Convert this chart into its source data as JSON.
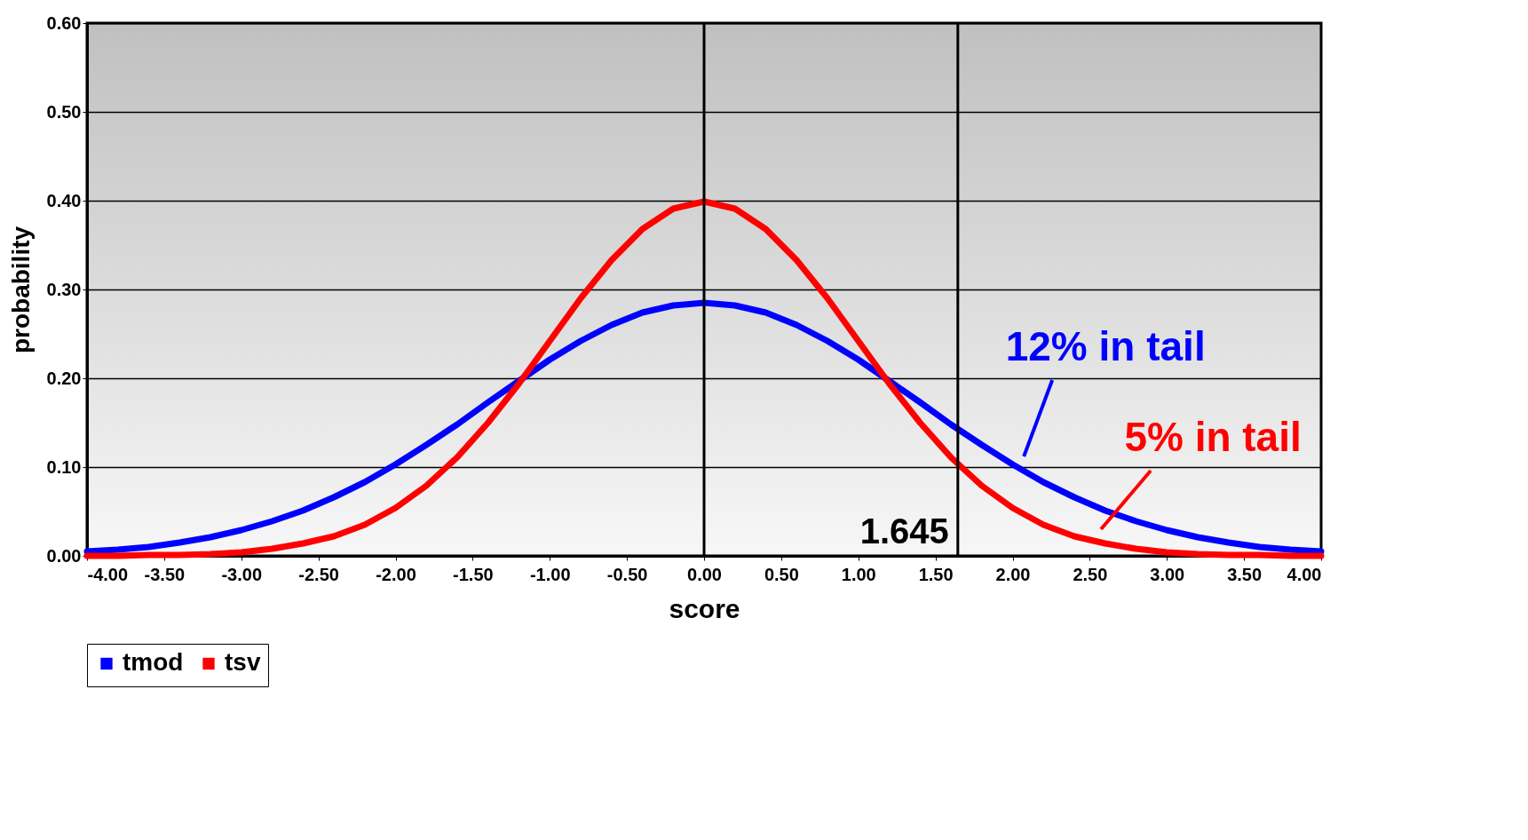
{
  "chart_data": {
    "type": "line",
    "xlabel": "score",
    "ylabel": "probability",
    "x": [
      -4,
      -3.8,
      -3.6,
      -3.4,
      -3.2,
      -3,
      -2.8,
      -2.6,
      -2.4,
      -2.2,
      -2,
      -1.8,
      -1.6,
      -1.4,
      -1.2,
      -1,
      -0.8,
      -0.6,
      -0.4,
      -0.2,
      0,
      0.2,
      0.4,
      0.6,
      0.8,
      1,
      1.2,
      1.4,
      1.6,
      1.8,
      2,
      2.2,
      2.4,
      2.6,
      2.8,
      3,
      3.2,
      3.4,
      3.6,
      3.8,
      4
    ],
    "series": [
      {
        "name": "tmod",
        "color": "#0000ff",
        "values": [
          0.005,
          0.007,
          0.01,
          0.015,
          0.021,
          0.029,
          0.039,
          0.051,
          0.066,
          0.083,
          0.103,
          0.125,
          0.148,
          0.173,
          0.197,
          0.221,
          0.242,
          0.26,
          0.274,
          0.282,
          0.285,
          0.282,
          0.274,
          0.26,
          0.242,
          0.221,
          0.197,
          0.173,
          0.148,
          0.125,
          0.103,
          0.083,
          0.066,
          0.051,
          0.039,
          0.029,
          0.021,
          0.015,
          0.01,
          0.007,
          0.005
        ]
      },
      {
        "name": "tsv",
        "color": "#ff0000",
        "values": [
          0,
          0,
          0.001,
          0.001,
          0.002,
          0.004,
          0.008,
          0.014,
          0.022,
          0.035,
          0.054,
          0.079,
          0.111,
          0.15,
          0.194,
          0.242,
          0.29,
          0.333,
          0.368,
          0.391,
          0.399,
          0.391,
          0.368,
          0.333,
          0.29,
          0.242,
          0.194,
          0.15,
          0.111,
          0.079,
          0.054,
          0.035,
          0.022,
          0.014,
          0.008,
          0.004,
          0.002,
          0.001,
          0.001,
          0,
          0
        ]
      }
    ],
    "xlim": [
      -4,
      4
    ],
    "xticks": [
      {
        "value": -4,
        "label": "-4.00"
      },
      {
        "value": -3.5,
        "label": "-3.50"
      },
      {
        "value": -3,
        "label": "-3.00"
      },
      {
        "value": -2.5,
        "label": "-2.50"
      },
      {
        "value": -2,
        "label": "-2.00"
      },
      {
        "value": -1.5,
        "label": "-1.50"
      },
      {
        "value": -1,
        "label": "-1.00"
      },
      {
        "value": -0.5,
        "label": "-0.50"
      },
      {
        "value": 0,
        "label": "0.00"
      },
      {
        "value": 0.5,
        "label": "0.50"
      },
      {
        "value": 1,
        "label": "1.00"
      },
      {
        "value": 1.5,
        "label": "1.50"
      },
      {
        "value": 2,
        "label": "2.00"
      },
      {
        "value": 2.5,
        "label": "2.50"
      },
      {
        "value": 3,
        "label": "3.00"
      },
      {
        "value": 3.5,
        "label": "3.50"
      },
      {
        "value": 4,
        "label": "4.00"
      }
    ],
    "ylim": [
      0,
      0.6
    ],
    "yticks": [
      {
        "value": 0,
        "label": "0.00"
      },
      {
        "value": 0.1,
        "label": "0.10"
      },
      {
        "value": 0.2,
        "label": "0.20"
      },
      {
        "value": 0.3,
        "label": "0.30"
      },
      {
        "value": 0.4,
        "label": "0.40"
      },
      {
        "value": 0.5,
        "label": "0.50"
      },
      {
        "value": 0.6,
        "label": "0.60"
      }
    ],
    "ref_lines": [
      {
        "axis": "x",
        "value": 0,
        "label": null,
        "color": "#000000"
      },
      {
        "axis": "x",
        "value": 1.645,
        "label": "1.645",
        "color": "#000000"
      }
    ],
    "annotations": [
      {
        "text": "12% in tail",
        "x": 2.05,
        "y": 0.098
      },
      {
        "text": "5% in tail",
        "x": 2.55,
        "y": 0.016
      }
    ],
    "grid": "y",
    "legend": "bottom",
    "marker": "none",
    "line_style": "solid"
  }
}
